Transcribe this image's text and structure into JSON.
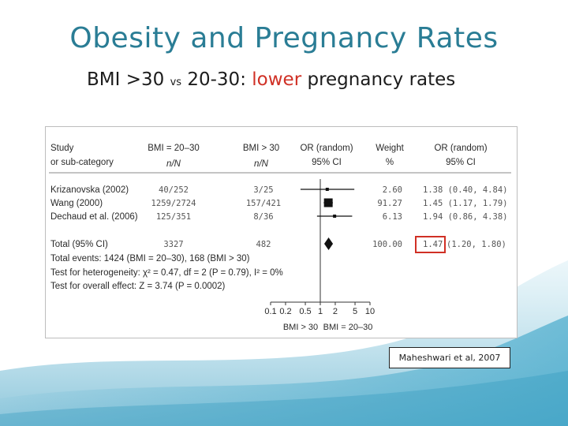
{
  "slide": {
    "title": "Obesity and Pregnancy Rates",
    "subtitle_a": "BMI >30 ",
    "subtitle_vs": "vs",
    "subtitle_b": " 20-30: ",
    "subtitle_highlight": "lower",
    "subtitle_c": " pregnancy rates",
    "citation": "Maheshwari et al, 2007"
  },
  "colors": {
    "title": "#2a7d95",
    "highlight": "#d03025",
    "box_highlight": "#d03025",
    "background_wave": "#3aa4c8"
  },
  "chart_data": {
    "type": "forest",
    "header": {
      "col_study": [
        "Study",
        "or sub-category"
      ],
      "col_g1": [
        "BMI = 20–30",
        "n/N"
      ],
      "col_g2": [
        "BMI > 30",
        "n/N"
      ],
      "col_or": [
        "OR (random)",
        "95% CI"
      ],
      "col_weight": [
        "Weight",
        "%"
      ],
      "col_orci": [
        "OR (random)",
        "95% CI"
      ]
    },
    "studies": [
      {
        "name": "Krizanovska (2002)",
        "g1": "40/252",
        "g2": "3/25",
        "weight_label": "2.60",
        "or_label": "1.38 (0.40, 4.84)",
        "or": 1.38,
        "lo": 0.4,
        "hi": 4.84,
        "weight": 2.6
      },
      {
        "name": "Wang (2000)",
        "g1": "1259/2724",
        "g2": "157/421",
        "weight_label": "91.27",
        "or_label": "1.45 (1.17, 1.79)",
        "or": 1.45,
        "lo": 1.17,
        "hi": 1.79,
        "weight": 91.27
      },
      {
        "name": "Dechaud et al. (2006)",
        "g1": "125/351",
        "g2": "8/36",
        "weight_label": "6.13",
        "or_label": "1.94 (0.86, 4.38)",
        "or": 1.94,
        "lo": 0.86,
        "hi": 4.38,
        "weight": 6.13
      }
    ],
    "total": {
      "name": "Total (95% CI)",
      "g1": "3327",
      "g2": "482",
      "weight_label": "100.00",
      "or_label_boxed": "1.47",
      "or_label_rest": " (1.20, 1.80)",
      "or": 1.47,
      "lo": 1.2,
      "hi": 1.8
    },
    "footnotes": [
      "Total events: 1424 (BMI = 20–30), 168 (BMI > 30)",
      "Test for heterogeneity: χ² = 0.47, df = 2 (P = 0.79), I² = 0%",
      "Test for overall effect: Z = 3.74 (P = 0.0002)"
    ],
    "x_axis": {
      "scale": "log",
      "ticks": [
        0.1,
        0.2,
        0.5,
        1,
        2,
        5,
        10
      ],
      "tick_labels": [
        "0.1",
        "0.2",
        "0.5",
        "1",
        "2",
        "5",
        "10"
      ],
      "xlim": [
        0.1,
        10
      ],
      "label_left": "BMI > 30",
      "label_right": "BMI = 20–30"
    }
  }
}
